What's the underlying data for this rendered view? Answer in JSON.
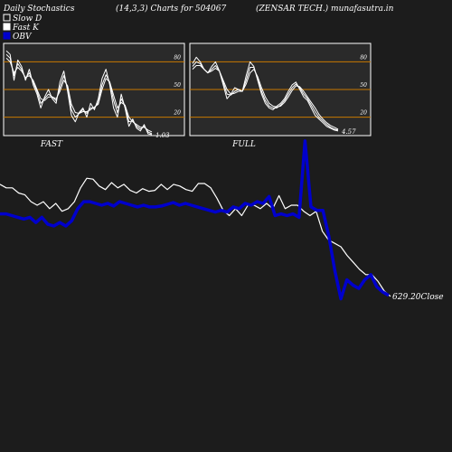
{
  "header": {
    "left": "Daily Stochastics",
    "center": "(14,3,3) Charts for 504067",
    "right": "(ZENSAR TECH.) munafasutra.in"
  },
  "legend": [
    {
      "label": "Slow  D",
      "swatch": "#1c1c1c",
      "border": "#ffffff"
    },
    {
      "label": "Fast K",
      "swatch": "#ffffff",
      "border": "#ffffff"
    },
    {
      "label": "OBV",
      "swatch": "#0000cc",
      "border": "#0000cc"
    }
  ],
  "colors": {
    "background": "#1c1c1c",
    "panel": "#2a2a2a",
    "price_line": "#ffffff",
    "obv_line": "#0000cc",
    "level_lines": "#c87800",
    "text": "#ffffff"
  },
  "chart_data": [
    {
      "type": "line",
      "title": "FAST",
      "levels": [
        80,
        50,
        20
      ],
      "level_labels": [
        "80",
        "50",
        "20"
      ],
      "ylim": [
        0,
        100
      ],
      "last_value_label": "1.03",
      "series": [
        {
          "values": [
            92,
            88,
            60,
            82,
            75,
            60,
            72,
            55,
            45,
            30,
            42,
            50,
            40,
            35,
            58,
            70,
            48,
            22,
            15,
            25,
            30,
            20,
            35,
            28,
            40,
            62,
            72,
            55,
            30,
            20,
            45,
            30,
            10,
            18,
            8,
            5,
            12,
            2,
            1
          ]
        },
        {
          "values": [
            88,
            84,
            65,
            78,
            72,
            62,
            68,
            58,
            48,
            35,
            40,
            45,
            42,
            38,
            52,
            65,
            52,
            28,
            20,
            24,
            28,
            24,
            30,
            30,
            36,
            55,
            66,
            58,
            38,
            25,
            40,
            32,
            15,
            16,
            10,
            7,
            10,
            4,
            2
          ]
        },
        {
          "values": [
            84,
            80,
            68,
            74,
            70,
            63,
            65,
            60,
            50,
            40,
            38,
            42,
            42,
            40,
            48,
            60,
            54,
            34,
            25,
            24,
            26,
            26,
            28,
            31,
            34,
            50,
            62,
            58,
            44,
            30,
            36,
            33,
            20,
            15,
            12,
            9,
            9,
            6,
            4
          ]
        }
      ]
    },
    {
      "type": "line",
      "title": "FULL",
      "levels": [
        80,
        50,
        20
      ],
      "level_labels": [
        "80",
        "50",
        "20"
      ],
      "ylim": [
        0,
        100
      ],
      "last_value_label": "4.57",
      "series": [
        {
          "values": [
            78,
            85,
            80,
            72,
            68,
            75,
            80,
            70,
            55,
            40,
            45,
            52,
            50,
            48,
            65,
            80,
            75,
            60,
            45,
            35,
            30,
            28,
            32,
            35,
            40,
            48,
            55,
            58,
            50,
            42,
            38,
            30,
            22,
            18,
            14,
            10,
            8,
            6,
            5
          ]
        },
        {
          "values": [
            75,
            80,
            78,
            72,
            68,
            72,
            76,
            70,
            58,
            45,
            44,
            48,
            50,
            48,
            60,
            74,
            74,
            62,
            48,
            38,
            32,
            30,
            30,
            33,
            38,
            45,
            52,
            56,
            52,
            45,
            40,
            33,
            26,
            20,
            16,
            12,
            9,
            7,
            6
          ]
        },
        {
          "values": [
            72,
            76,
            76,
            72,
            68,
            70,
            73,
            70,
            60,
            50,
            45,
            46,
            48,
            48,
            56,
            68,
            72,
            64,
            52,
            42,
            35,
            32,
            31,
            32,
            36,
            42,
            49,
            54,
            53,
            48,
            42,
            36,
            30,
            23,
            18,
            14,
            11,
            9,
            7
          ]
        }
      ]
    },
    {
      "type": "line",
      "title": "",
      "last_value_label": "629.20Close",
      "series": [
        {
          "values": [
            48,
            44,
            44,
            38,
            36,
            28,
            24,
            28,
            20,
            26,
            17,
            20,
            28,
            44,
            55,
            54,
            46,
            42,
            50,
            44,
            48,
            41,
            38,
            43,
            40,
            41,
            48,
            42,
            48,
            46,
            42,
            40,
            49,
            49,
            44,
            32,
            18,
            12,
            20,
            12,
            24,
            24,
            20,
            26,
            20,
            35,
            20,
            24,
            24,
            17,
            12,
            17,
            -6,
            -16,
            -20,
            -24,
            -34,
            -42,
            -50,
            -56,
            -56,
            -64,
            -75,
            -81
          ]
        },
        {
          "values": [
            14,
            14,
            12,
            10,
            8,
            10,
            4,
            10,
            2,
            0,
            4,
            0,
            6,
            20,
            28,
            28,
            26,
            24,
            26,
            23,
            28,
            26,
            24,
            22,
            24,
            22,
            22,
            23,
            25,
            27,
            24,
            26,
            24,
            22,
            20,
            18,
            16,
            18,
            16,
            22,
            20,
            26,
            24,
            28,
            26,
            34,
            12,
            14,
            12,
            14,
            10,
            98,
            22,
            18,
            18,
            -12,
            -52,
            -84,
            -62,
            -68,
            -72,
            -62,
            -56,
            -70,
            -76,
            -80
          ]
        }
      ]
    }
  ]
}
